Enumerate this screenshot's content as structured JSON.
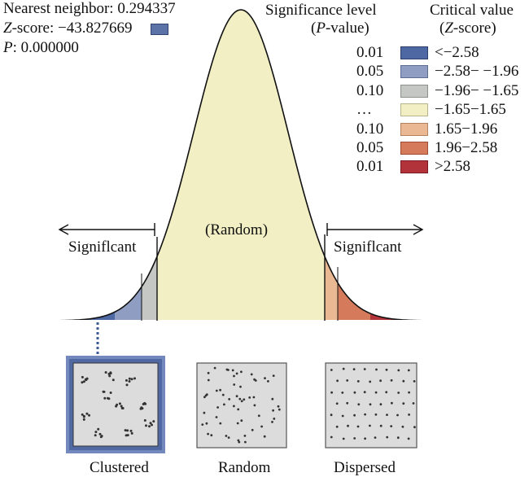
{
  "stats": {
    "nearest_neighbor": "Nearest neighbor: 0.294337",
    "z_label": "Z",
    "z_value": "-score: −43.827669",
    "p_label": "P",
    "p_value": ": 0.000000"
  },
  "legend": {
    "sig_header_1": "Significance level",
    "sig_header_2_pre": "(",
    "sig_header_2_em": "P",
    "sig_header_2_post": "-value)",
    "crit_header_1": "Critical value",
    "crit_header_2_pre": "(",
    "crit_header_2_em": "Z",
    "crit_header_2_post": "-score)",
    "rows": [
      {
        "p": "0.01",
        "z": "<−2.58",
        "color": "#4e68a3",
        "border": "#2c3f6c"
      },
      {
        "p": "0.05",
        "z": "−2.58− −1.96",
        "color": "#8f9dc2",
        "border": "#5d6c92"
      },
      {
        "p": "0.10",
        "z": "−1.96− −1.65",
        "color": "#c4c7c4",
        "border": "#8c8f8c"
      },
      {
        "p": "…",
        "z": "−1.65−1.65",
        "color": "#f1efc3",
        "border": "#b6b48a"
      },
      {
        "p": "0.10",
        "z": "1.65−1.96",
        "color": "#ebb894",
        "border": "#b5825e"
      },
      {
        "p": "0.05",
        "z": "1.96−2.58",
        "color": "#d67a5c",
        "border": "#9f4c33"
      },
      {
        "p": "0.01",
        "z": ">2.58",
        "color": "#b3333a",
        "border": "#7a1a20"
      }
    ]
  },
  "curve": {
    "left_label": "Signiflcant",
    "right_label": "Signiflcant",
    "center_label": "(Random)"
  },
  "patterns": {
    "clustered": "Clustered",
    "random": "Random",
    "dispersed": "Dispersed"
  }
}
